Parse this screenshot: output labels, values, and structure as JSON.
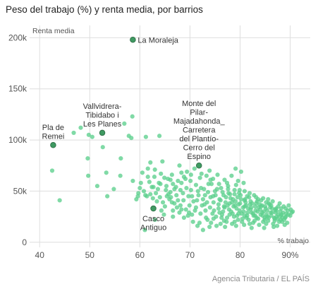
{
  "header": {
    "title": "Peso del trabajo (%) y renta media, por barrios"
  },
  "footer": {
    "source": "Agencia Tributaria / EL PAÍS"
  },
  "colors": {
    "point": "#5ccf8d",
    "highlight": "#3f9a62",
    "grid": "#dedede",
    "background": "#ffffff"
  },
  "chart_data": {
    "type": "scatter",
    "title": "Peso del trabajo (%) y renta media, por barrios",
    "xlabel": "% trabajo",
    "ylabel": "Renta media",
    "xlim": [
      38,
      94
    ],
    "ylim": [
      -5000,
      212000
    ],
    "x_ticks": [
      40,
      50,
      60,
      70,
      80,
      90
    ],
    "x_tick_labels": [
      "40",
      "50",
      "60",
      "70",
      "80",
      "90%"
    ],
    "y_ticks": [
      0,
      50000,
      100000,
      150000,
      200000
    ],
    "y_tick_labels": [
      "0",
      "50k",
      "100k",
      "150k",
      "200k"
    ],
    "grid": true,
    "highlights": [
      {
        "x": 58.6,
        "y": 198000,
        "label": [
          "La Moraleja"
        ],
        "anchor": "right"
      },
      {
        "x": 52.5,
        "y": 107000,
        "label": [
          "Vallvidrera-",
          "Tibidabo i",
          "Les Planes"
        ],
        "anchor": "above"
      },
      {
        "x": 42.7,
        "y": 95000,
        "label": [
          "Pla de",
          "Remei"
        ],
        "anchor": "above"
      },
      {
        "x": 71.8,
        "y": 75000,
        "label": [
          "Monte del",
          "Pilar-",
          "Majadahonda_",
          "Carretera",
          "del Plantío-",
          "Cerro del",
          "Espino"
        ],
        "anchor": "above"
      },
      {
        "x": 62.7,
        "y": 33000,
        "label": [
          "Casco",
          "Antiguo"
        ],
        "anchor": "below"
      }
    ],
    "points": [
      [
        42.5,
        70000
      ],
      [
        44,
        41000
      ],
      [
        46.8,
        107000
      ],
      [
        48.2,
        112000
      ],
      [
        49.8,
        105000
      ],
      [
        50.5,
        103000
      ],
      [
        49.6,
        82000
      ],
      [
        49.7,
        65000
      ],
      [
        51.5,
        55000
      ],
      [
        52.6,
        93000
      ],
      [
        53.5,
        45000
      ],
      [
        53.3,
        68000
      ],
      [
        54.8,
        52000
      ],
      [
        56.1,
        65000
      ],
      [
        56.2,
        82000
      ],
      [
        56.9,
        116000
      ],
      [
        57.8,
        104000
      ],
      [
        58.5,
        123000
      ],
      [
        58.3,
        102000
      ],
      [
        58.6,
        60000
      ],
      [
        59.3,
        42000
      ],
      [
        59.6,
        45000
      ],
      [
        60.5,
        68000
      ],
      [
        61.2,
        103000
      ],
      [
        61.6,
        72000
      ],
      [
        62.1,
        78000
      ],
      [
        62.4,
        54000
      ],
      [
        62.9,
        64000
      ],
      [
        63.2,
        48000
      ],
      [
        63.4,
        40000
      ],
      [
        63.9,
        104000
      ],
      [
        64.5,
        79000
      ],
      [
        64.1,
        57000
      ],
      [
        60.8,
        50000
      ],
      [
        61.4,
        45000
      ],
      [
        62.1,
        47000
      ],
      [
        64.6,
        39000
      ],
      [
        64.3,
        31000
      ],
      [
        65.2,
        51000
      ],
      [
        65.7,
        47000
      ],
      [
        66.2,
        44000
      ],
      [
        67.2,
        54000
      ],
      [
        67.6,
        41000
      ],
      [
        68.1,
        36000
      ],
      [
        68.6,
        48000
      ],
      [
        68.3,
        58000
      ],
      [
        69.1,
        62000
      ],
      [
        69.7,
        45000
      ],
      [
        70.2,
        51000
      ],
      [
        70.7,
        40000
      ],
      [
        71.2,
        34000
      ],
      [
        71.7,
        46000
      ],
      [
        72.2,
        53000
      ],
      [
        72.6,
        42000
      ],
      [
        72.9,
        37000
      ],
      [
        73.3,
        65000
      ],
      [
        73.6,
        49000
      ],
      [
        74.1,
        44000
      ],
      [
        74.3,
        57000
      ],
      [
        74.7,
        39000
      ],
      [
        75.1,
        46000
      ],
      [
        75.4,
        52000
      ],
      [
        75.7,
        33000
      ],
      [
        76.1,
        41000
      ],
      [
        76.5,
        49000
      ],
      [
        76.8,
        35000
      ],
      [
        77.2,
        44000
      ],
      [
        77.6,
        55000
      ],
      [
        77.9,
        38000
      ],
      [
        78.2,
        30000
      ],
      [
        78.6,
        42000
      ],
      [
        78.9,
        47000
      ],
      [
        79.3,
        33000
      ],
      [
        79.7,
        37000
      ],
      [
        79.9,
        51000
      ],
      [
        80.3,
        28000
      ],
      [
        80.6,
        34000
      ],
      [
        80.9,
        41000
      ],
      [
        81.2,
        36000
      ],
      [
        81.5,
        29000
      ],
      [
        81.8,
        44000
      ],
      [
        82.1,
        32000
      ],
      [
        82.4,
        38000
      ],
      [
        82.7,
        26000
      ],
      [
        83.1,
        31000
      ],
      [
        83.4,
        40000
      ],
      [
        83.7,
        34000
      ],
      [
        84.1,
        27000
      ],
      [
        84.4,
        36000
      ],
      [
        84.7,
        30000
      ],
      [
        85.1,
        33000
      ],
      [
        85.4,
        25000
      ],
      [
        85.7,
        38000
      ],
      [
        86.1,
        29000
      ],
      [
        86.4,
        33000
      ],
      [
        86.8,
        24000
      ],
      [
        87.2,
        31000
      ],
      [
        87.6,
        27000
      ],
      [
        88.1,
        22000
      ],
      [
        88.6,
        29000
      ],
      [
        89.1,
        25000
      ],
      [
        89.6,
        27000
      ],
      [
        90.5,
        30000
      ],
      [
        78.3,
        65000
      ],
      [
        79.1,
        72000
      ],
      [
        80.2,
        69000
      ],
      [
        80.7,
        58000
      ],
      [
        79.6,
        60000
      ],
      [
        77.4,
        58000
      ],
      [
        76.9,
        61000
      ],
      [
        75.5,
        66000
      ],
      [
        74.6,
        62000
      ],
      [
        73.9,
        70000
      ],
      [
        72.3,
        67000
      ],
      [
        70.9,
        72000
      ],
      [
        69.4,
        69000
      ],
      [
        68.8,
        64000
      ],
      [
        67.6,
        60000
      ],
      [
        66.6,
        57000
      ],
      [
        65.6,
        62000
      ],
      [
        64.9,
        63000
      ],
      [
        62.7,
        54000
      ],
      [
        61.9,
        59000
      ],
      [
        60.2,
        58000
      ],
      [
        59.7,
        48000
      ],
      [
        63.6,
        52000
      ],
      [
        65.4,
        45000
      ],
      [
        66.9,
        38000
      ],
      [
        67.9,
        29000
      ],
      [
        69.6,
        26000
      ],
      [
        70.6,
        20000
      ],
      [
        71.5,
        16000
      ],
      [
        72.6,
        12000
      ],
      [
        73.5,
        22000
      ],
      [
        74.5,
        28000
      ],
      [
        75.3,
        16000
      ],
      [
        76.3,
        24000
      ],
      [
        77.3,
        20000
      ],
      [
        78.4,
        18000
      ],
      [
        79.6,
        22000
      ],
      [
        80.8,
        17000
      ],
      [
        81.7,
        22000
      ],
      [
        82.6,
        19000
      ],
      [
        83.6,
        23000
      ],
      [
        84.6,
        20000
      ],
      [
        85.6,
        21000
      ],
      [
        86.6,
        18000
      ],
      [
        87.5,
        23000
      ],
      [
        88.4,
        20000
      ],
      [
        89.4,
        19000
      ],
      [
        76.6,
        30000
      ],
      [
        77.9,
        27000
      ],
      [
        78.8,
        25000
      ],
      [
        79.9,
        31000
      ],
      [
        80.5,
        23000
      ],
      [
        81.4,
        26000
      ],
      [
        82.3,
        29000
      ],
      [
        83.3,
        24000
      ],
      [
        84.4,
        29000
      ],
      [
        85.3,
        27000
      ],
      [
        86.2,
        26000
      ],
      [
        87.1,
        29000
      ],
      [
        88.1,
        26000
      ],
      [
        89.0,
        24000
      ],
      [
        75.7,
        37000
      ],
      [
        76.9,
        34000
      ],
      [
        77.8,
        32000
      ],
      [
        78.7,
        35000
      ],
      [
        79.7,
        28000
      ],
      [
        80.7,
        30000
      ],
      [
        81.6,
        33000
      ],
      [
        82.6,
        28000
      ],
      [
        83.5,
        30000
      ],
      [
        84.5,
        26000
      ],
      [
        85.4,
        31000
      ],
      [
        86.4,
        29000
      ],
      [
        87.3,
        25000
      ],
      [
        88.3,
        27000
      ],
      [
        72.1,
        28000
      ],
      [
        73.1,
        31000
      ],
      [
        74.0,
        34000
      ],
      [
        71.4,
        41000
      ],
      [
        70.4,
        45000
      ],
      [
        69.9,
        36000
      ],
      [
        68.7,
        41000
      ],
      [
        67.3,
        46000
      ],
      [
        66.1,
        49000
      ],
      [
        74.6,
        45000
      ],
      [
        75.9,
        42000
      ],
      [
        77.1,
        39000
      ],
      [
        78.1,
        43000
      ],
      [
        79.1,
        40000
      ],
      [
        80.0,
        38000
      ],
      [
        81.0,
        42000
      ],
      [
        82.0,
        37000
      ],
      [
        83.0,
        35000
      ],
      [
        84.0,
        32000
      ],
      [
        85.0,
        35000
      ],
      [
        86.0,
        34000
      ],
      [
        87.0,
        32000
      ],
      [
        88.0,
        30000
      ],
      [
        89.2,
        28000
      ],
      [
        90.0,
        26000
      ],
      [
        81.3,
        24000
      ],
      [
        82.9,
        21000
      ],
      [
        84.9,
        22000
      ],
      [
        86.9,
        21000
      ],
      [
        88.8,
        22000
      ],
      [
        80.1,
        46000
      ],
      [
        81.9,
        48000
      ],
      [
        83.2,
        44000
      ],
      [
        84.2,
        41000
      ],
      [
        78.9,
        51000
      ],
      [
        77.7,
        48000
      ],
      [
        76.2,
        53000
      ],
      [
        73.7,
        57000
      ],
      [
        72.8,
        52000
      ],
      [
        71.2,
        56000
      ],
      [
        70.1,
        60000
      ],
      [
        69.3,
        53000
      ],
      [
        68.1,
        51000
      ],
      [
        66.9,
        52000
      ],
      [
        65.3,
        55000
      ],
      [
        63.8,
        58000
      ],
      [
        61.1,
        46000
      ],
      [
        79.5,
        44000
      ],
      [
        80.9,
        35000
      ],
      [
        82.1,
        40000
      ],
      [
        83.9,
        37000
      ],
      [
        85.9,
        37000
      ],
      [
        87.6,
        35000
      ],
      [
        89.5,
        31000
      ],
      [
        90.3,
        29000
      ],
      [
        85.7,
        24000
      ],
      [
        87.8,
        20000
      ],
      [
        76.1,
        18000
      ],
      [
        73.9,
        15000
      ],
      [
        71.9,
        19000
      ],
      [
        70.4,
        27000
      ],
      [
        69.2,
        32000
      ],
      [
        67.4,
        34000
      ],
      [
        66.4,
        39000
      ],
      [
        65.9,
        42000
      ],
      [
        64.0,
        44000
      ],
      [
        62.6,
        43000
      ],
      [
        73.2,
        24000
      ],
      [
        74.2,
        19000
      ],
      [
        75.2,
        25000
      ],
      [
        76.4,
        27000
      ],
      [
        77.4,
        24000
      ],
      [
        78.5,
        28000
      ],
      [
        79.4,
        26000
      ],
      [
        80.4,
        20000
      ],
      [
        81.9,
        18000
      ],
      [
        83.8,
        17000
      ],
      [
        85.2,
        18000
      ],
      [
        86.7,
        15000
      ],
      [
        88.9,
        17000
      ],
      [
        77.0,
        15000
      ],
      [
        79.2,
        16000
      ],
      [
        82.3,
        14000
      ],
      [
        84.8,
        14000
      ],
      [
        87.4,
        16000
      ],
      [
        71.0,
        31000
      ],
      [
        72.4,
        36000
      ],
      [
        73.4,
        39000
      ],
      [
        74.8,
        31000
      ],
      [
        75.9,
        29000
      ],
      [
        77.5,
        36000
      ],
      [
        78.4,
        39000
      ],
      [
        79.0,
        36000
      ],
      [
        80.2,
        42000
      ],
      [
        81.1,
        39000
      ],
      [
        82.2,
        34000
      ],
      [
        83.2,
        38000
      ],
      [
        84.2,
        35000
      ],
      [
        85.2,
        39000
      ],
      [
        86.2,
        36000
      ],
      [
        87.2,
        33000
      ],
      [
        88.2,
        33000
      ],
      [
        89.1,
        33000
      ],
      [
        90.1,
        32000
      ],
      [
        88.7,
        35000
      ],
      [
        86.5,
        40000
      ],
      [
        84.6,
        43000
      ],
      [
        82.8,
        46000
      ],
      [
        80.9,
        50000
      ],
      [
        79.2,
        56000
      ],
      [
        77.6,
        52000
      ],
      [
        75.8,
        57000
      ],
      [
        74.1,
        61000
      ],
      [
        72.0,
        63000
      ],
      [
        70.2,
        66000
      ],
      [
        68.3,
        68000
      ],
      [
        66.4,
        66000
      ],
      [
        64.2,
        67000
      ],
      [
        63.0,
        71000
      ],
      [
        61.6,
        64000
      ],
      [
        60.0,
        53000
      ],
      [
        67.9,
        75000
      ],
      [
        66.1,
        61000
      ],
      [
        71.6,
        50000
      ],
      [
        73.0,
        46000
      ],
      [
        75.0,
        50000
      ],
      [
        76.7,
        46000
      ],
      [
        78.0,
        47000
      ],
      [
        79.8,
        48000
      ],
      [
        81.4,
        45000
      ],
      [
        83.6,
        42000
      ],
      [
        85.6,
        42000
      ],
      [
        87.9,
        38000
      ],
      [
        89.7,
        36000
      ],
      [
        63.0,
        22000
      ],
      [
        64.8,
        27000
      ],
      [
        66.6,
        25000
      ],
      [
        68.8,
        24000
      ],
      [
        69.8,
        29000
      ],
      [
        74.7,
        23000
      ],
      [
        76.8,
        21000
      ],
      [
        78.9,
        20000
      ],
      [
        80.9,
        26000
      ],
      [
        83.0,
        26000
      ],
      [
        84.9,
        24000
      ],
      [
        86.9,
        23000
      ],
      [
        88.4,
        24000
      ],
      [
        61.0,
        12000
      ],
      [
        65.0,
        35000
      ],
      [
        66.6,
        31000
      ],
      [
        68.3,
        32000
      ]
    ]
  }
}
